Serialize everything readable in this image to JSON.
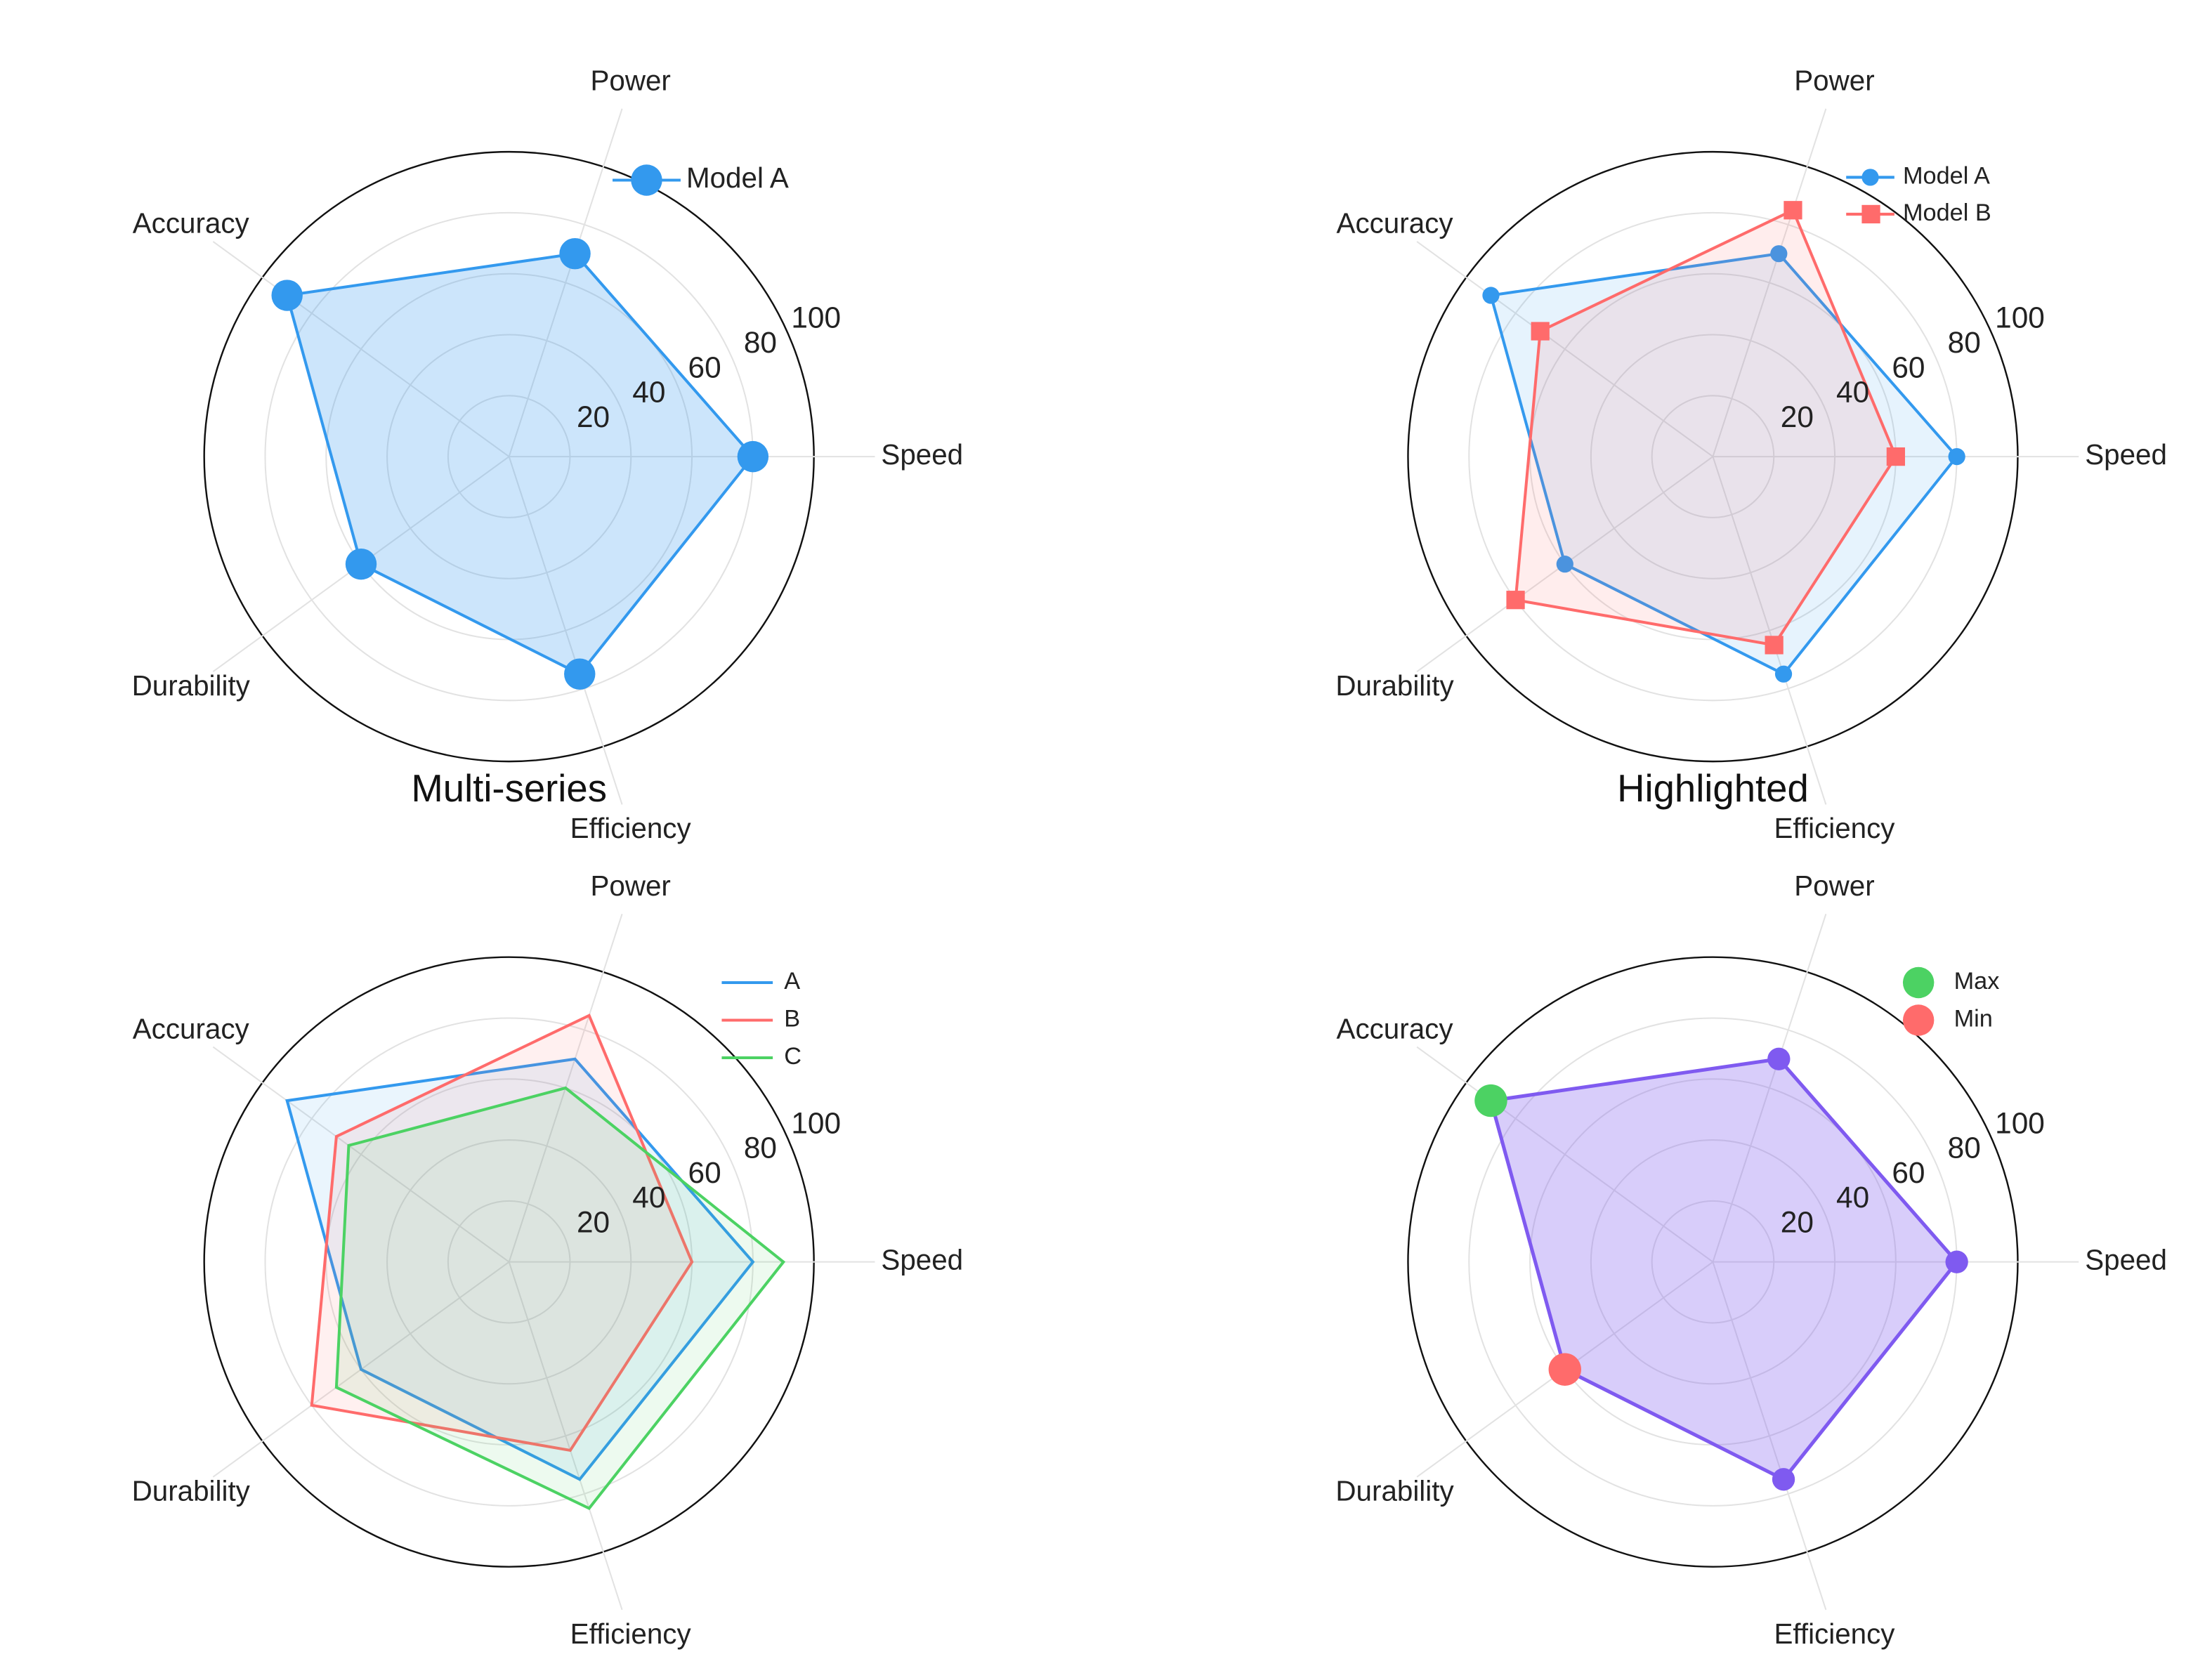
{
  "chart_data": [
    {
      "type": "radar",
      "title": "",
      "axes": [
        "Speed",
        "Power",
        "Accuracy",
        "Durability",
        "Efficiency"
      ],
      "rlim": [
        0,
        100
      ],
      "rticks": [
        20,
        40,
        60,
        80,
        100
      ],
      "legend": "top-right",
      "marker_style": "large",
      "series": [
        {
          "name": "Model A",
          "values": [
            80,
            70,
            90,
            60,
            75
          ],
          "color": "#3399ee",
          "marker": "circle",
          "fill_opacity": 0.25
        }
      ]
    },
    {
      "type": "radar",
      "title": "",
      "axes": [
        "Speed",
        "Power",
        "Accuracy",
        "Durability",
        "Efficiency"
      ],
      "rlim": [
        0,
        100
      ],
      "rticks": [
        20,
        40,
        60,
        80,
        100
      ],
      "legend": "top-right",
      "marker_style": "small",
      "series": [
        {
          "name": "Model A",
          "values": [
            80,
            70,
            90,
            60,
            75
          ],
          "color": "#3399ee",
          "marker": "circle",
          "fill_opacity": 0.12
        },
        {
          "name": "Model B",
          "values": [
            60,
            85,
            70,
            80,
            65
          ],
          "color": "#ff6b6b",
          "marker": "square",
          "fill_opacity": 0.12
        }
      ]
    },
    {
      "type": "radar",
      "title": "Multi-series",
      "axes": [
        "Speed",
        "Power",
        "Accuracy",
        "Durability",
        "Efficiency"
      ],
      "rlim": [
        0,
        100
      ],
      "rticks": [
        20,
        40,
        60,
        80,
        100
      ],
      "legend": "top-right",
      "marker_style": "none",
      "series": [
        {
          "name": "A",
          "values": [
            80,
            70,
            90,
            60,
            75
          ],
          "color": "#3399ee",
          "marker": "none",
          "fill_opacity": 0.1
        },
        {
          "name": "B",
          "values": [
            60,
            85,
            70,
            80,
            65
          ],
          "color": "#ff6b6b",
          "marker": "none",
          "fill_opacity": 0.1
        },
        {
          "name": "C",
          "values": [
            90,
            60,
            65,
            70,
            85
          ],
          "color": "#4cd263",
          "marker": "none",
          "fill_opacity": 0.1
        }
      ]
    },
    {
      "type": "radar",
      "title": "Highlighted",
      "axes": [
        "Speed",
        "Power",
        "Accuracy",
        "Durability",
        "Efficiency"
      ],
      "rlim": [
        0,
        100
      ],
      "rticks": [
        20,
        40,
        60,
        80,
        100
      ],
      "legend": "top-right",
      "marker_style": "medium",
      "series": [
        {
          "name": "",
          "values": [
            80,
            70,
            90,
            60,
            75
          ],
          "color": "#7f5af0",
          "marker": "circle",
          "fill_opacity": 0.3
        }
      ],
      "highlights": [
        {
          "name": "Max",
          "axis": "Accuracy",
          "value": 90,
          "color": "#4cd263"
        },
        {
          "name": "Min",
          "axis": "Durability",
          "value": 60,
          "color": "#ff6b6b"
        }
      ]
    }
  ]
}
